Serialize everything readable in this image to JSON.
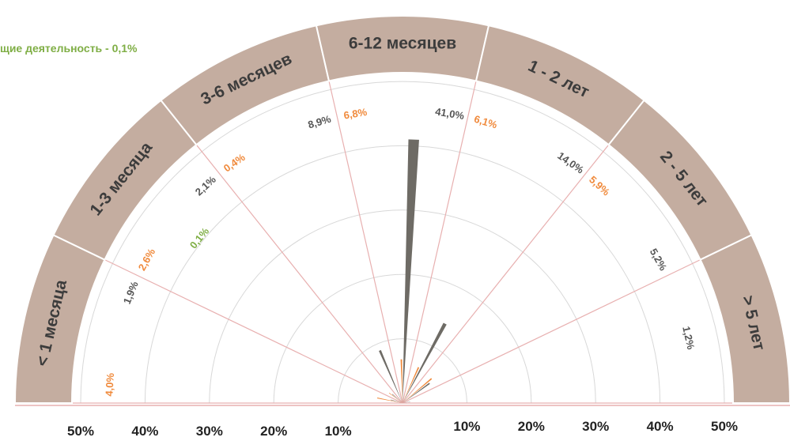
{
  "chart_data": {
    "type": "polar-bar",
    "title": "",
    "legend_note": "щие деятельность - 0,1%",
    "axis_ticks_left": [
      "50%",
      "40%",
      "30%",
      "20%",
      "10%"
    ],
    "axis_ticks_right": [
      "10%",
      "20%",
      "30%",
      "40%",
      "50%"
    ],
    "rmax": 50,
    "categories": [
      "< 1 месяца",
      "1-3 месяца",
      "3-6 месяцев",
      "6-12 месяцев",
      "1 - 2 лет",
      "2 - 5 лет",
      "> 5 лет"
    ],
    "series": [
      {
        "color": "#f08a3c",
        "values": [
          4.0,
          2.6,
          0.4,
          6.8,
          6.1,
          5.9,
          null
        ],
        "labels": [
          "4,0%",
          "2,6%",
          "0,4%",
          "6,8%",
          "6,1%",
          "5,9%",
          ""
        ]
      },
      {
        "color": "#6e6b65",
        "values": [
          1.9,
          2.1,
          8.9,
          41.0,
          14.0,
          5.2,
          1.2
        ],
        "labels": [
          "1,9%",
          "2,1%",
          "8,9%",
          "41,0%",
          "14,0%",
          "5,2%",
          "1,2%"
        ]
      },
      {
        "color": "#7fae45",
        "values": [
          null,
          0.1,
          null,
          null,
          null,
          null,
          null
        ],
        "labels": [
          "",
          "0,1%",
          "",
          "",
          "",
          "",
          ""
        ]
      }
    ],
    "colors": {
      "band": "#c4ada0",
      "grid": "#d8d8d8",
      "spoke": "#e8b0b0"
    }
  }
}
